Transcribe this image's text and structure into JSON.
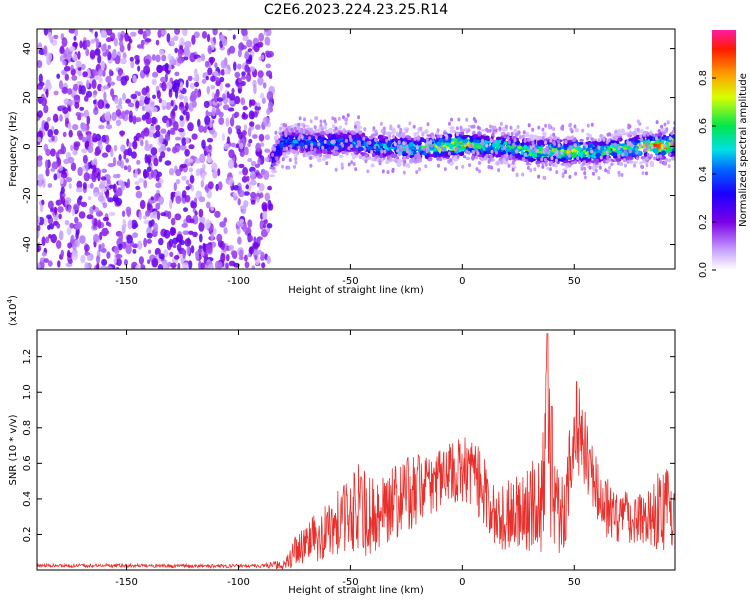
{
  "title": "C2E6.2023.224.23.25.R14",
  "chart_data": [
    {
      "type": "heatmap",
      "xlabel": "Height of straight line (km)",
      "ylabel": "Frequency (Hz)",
      "xlim": [
        -190,
        95
      ],
      "ylim": [
        -50,
        48
      ],
      "xticks": [
        -150,
        -100,
        -50,
        0,
        50
      ],
      "yticks": [
        -40,
        -20,
        0,
        20,
        40
      ],
      "colorbar": {
        "label": "Normalized spectral amplitude",
        "range": [
          0,
          1
        ],
        "ticks": [
          "0.0",
          "0.2",
          "0.4",
          "0.6",
          "0.8"
        ],
        "colormap": "rainbow (white-violet-blue-cyan-green-yellow-orange-red-magenta)"
      },
      "noise_region": {
        "x": [
          -190,
          -85
        ],
        "y": [
          -50,
          48
        ],
        "amplitude": [
          0.05,
          0.25
        ]
      },
      "signal_ridge": {
        "x": [
          -85,
          -80,
          -70,
          -60,
          -50,
          -40,
          -30,
          -20,
          -10,
          0,
          10,
          20,
          30,
          40,
          50,
          60,
          70,
          80,
          90,
          95
        ],
        "frequency": [
          -6,
          2,
          2,
          1,
          2,
          0,
          0,
          -1,
          0,
          1,
          0,
          0,
          -2,
          -2,
          -2,
          -2,
          -1,
          0,
          0,
          1
        ],
        "peak_amplitude": [
          0.3,
          0.45,
          0.45,
          0.5,
          0.45,
          0.5,
          0.55,
          0.6,
          0.75,
          0.8,
          0.6,
          0.6,
          0.65,
          0.7,
          0.75,
          0.6,
          0.65,
          0.75,
          0.95,
          0.9
        ]
      },
      "grid": false
    },
    {
      "type": "line",
      "xlabel": "Height of straight line (km)",
      "ylabel": "SNR (10 * v/v)",
      "yscale_label": "(x10",
      "yscale_exp": "4",
      "yscale_close": ")",
      "xlim": [
        -190,
        95
      ],
      "ylim": [
        0,
        1.35
      ],
      "xticks": [
        -150,
        -100,
        -50,
        0,
        50
      ],
      "yticks": [
        0.2,
        0.4,
        0.6,
        0.8,
        1.0,
        1.2
      ],
      "series": [
        {
          "color": "#e8302c",
          "envelope_x": [
            -190,
            -170,
            -150,
            -130,
            -110,
            -90,
            -80,
            -75,
            -70,
            -60,
            -50,
            -45,
            -40,
            -30,
            -20,
            -10,
            0,
            5,
            10,
            15,
            20,
            25,
            30,
            35,
            38,
            40,
            45,
            50,
            52,
            55,
            60,
            65,
            70,
            80,
            90,
            95
          ],
          "envelope_y": [
            0.025,
            0.025,
            0.025,
            0.022,
            0.022,
            0.024,
            0.03,
            0.1,
            0.15,
            0.22,
            0.32,
            0.35,
            0.3,
            0.4,
            0.45,
            0.52,
            0.55,
            0.55,
            0.45,
            0.28,
            0.3,
            0.35,
            0.35,
            0.38,
            0.85,
            0.35,
            0.32,
            0.7,
            0.8,
            0.62,
            0.45,
            0.35,
            0.3,
            0.3,
            0.35,
            0.3
          ],
          "spike_amplitude": [
            0.01,
            0.01,
            0.01,
            0.01,
            0.01,
            0.01,
            0.03,
            0.08,
            0.12,
            0.16,
            0.22,
            0.28,
            0.22,
            0.22,
            0.2,
            0.18,
            0.2,
            0.2,
            0.22,
            0.15,
            0.2,
            0.22,
            0.25,
            0.3,
            0.5,
            0.25,
            0.25,
            0.3,
            0.28,
            0.28,
            0.2,
            0.2,
            0.15,
            0.15,
            0.25,
            0.2
          ],
          "peaks": [
            {
              "x": 38,
              "y": 1.33
            },
            {
              "x": 51,
              "y": 1.06
            },
            {
              "x": 40,
              "y": 0.92
            }
          ]
        }
      ],
      "grid": false
    }
  ]
}
